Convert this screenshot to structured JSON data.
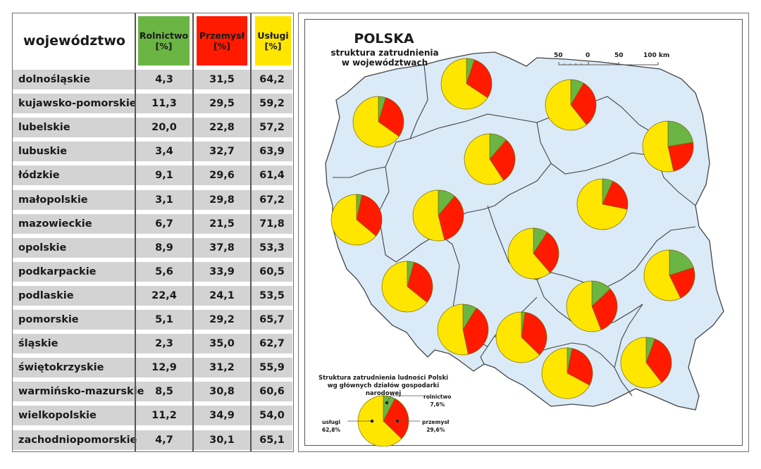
{
  "table": {
    "headers": {
      "region": "województwo",
      "agriculture": [
        "Rolnictwo",
        "[%]"
      ],
      "industry": [
        "Przemysł",
        "[%]"
      ],
      "services": [
        "Usługi",
        "[%]"
      ]
    },
    "header_colors": {
      "agriculture": "#6ab544",
      "industry": "#ff1a00",
      "services": "#ffe600"
    },
    "rows": [
      {
        "name": "dolnośląskie",
        "agri": "4,3",
        "ind": "31,5",
        "serv": "64,2"
      },
      {
        "name": "kujawsko-pomorskie",
        "agri": "11,3",
        "ind": "29,5",
        "serv": "59,2"
      },
      {
        "name": "lubelskie",
        "agri": "20,0",
        "ind": "22,8",
        "serv": "57,2"
      },
      {
        "name": "lubuskie",
        "agri": "3,4",
        "ind": "32,7",
        "serv": "63,9"
      },
      {
        "name": "łódzkie",
        "agri": "9,1",
        "ind": "29,6",
        "serv": "61,4"
      },
      {
        "name": "małopolskie",
        "agri": "3,1",
        "ind": "29,8",
        "serv": "67,2"
      },
      {
        "name": "mazowieckie",
        "agri": "6,7",
        "ind": "21,5",
        "serv": "71,8"
      },
      {
        "name": "opolskie",
        "agri": "8,9",
        "ind": "37,8",
        "serv": "53,3"
      },
      {
        "name": "podkarpackie",
        "agri": "5,6",
        "ind": "33,9",
        "serv": "60,5"
      },
      {
        "name": "podlaskie",
        "agri": "22,4",
        "ind": "24,1",
        "serv": "53,5"
      },
      {
        "name": "pomorskie",
        "agri": "5,1",
        "ind": "29,2",
        "serv": "65,7"
      },
      {
        "name": "śląskie",
        "agri": "2,3",
        "ind": "35,0",
        "serv": "62,7"
      },
      {
        "name": "świętokrzyskie",
        "agri": "12,9",
        "ind": "31,2",
        "serv": "55,9"
      },
      {
        "name": "warmińsko-mazurskie",
        "agri": "8,5",
        "ind": "30,8",
        "serv": "60,6"
      },
      {
        "name": "wielkopolskie",
        "agri": "11,2",
        "ind": "34,9",
        "serv": "54,0"
      },
      {
        "name": "zachodniopomorskie",
        "agri": "4,7",
        "ind": "30,1",
        "serv": "65,1"
      }
    ]
  },
  "map": {
    "title": "POLSKA",
    "subtitle": [
      "struktura zatrudnienia",
      "w województwach"
    ],
    "scale": {
      "labels": [
        "50",
        "0",
        "50",
        "100 km"
      ]
    },
    "legend": {
      "title": [
        "Struktura zatrudnienia ludności Polski",
        "wg głównych działów gospodarki narodowej"
      ],
      "agriculture": [
        "rolnictwo",
        "7,6%"
      ],
      "industry": [
        "przemysł",
        "29,6%"
      ],
      "services": [
        "usługi",
        "62,8%"
      ]
    }
  },
  "chart_data": [
    {
      "type": "table",
      "title": "Struktura zatrudnienia w województwach",
      "columns": [
        "województwo",
        "Rolnictwo [%]",
        "Przemysł [%]",
        "Usługi [%]"
      ],
      "categories": [
        "dolnośląskie",
        "kujawsko-pomorskie",
        "lubelskie",
        "lubuskie",
        "łódzkie",
        "małopolskie",
        "mazowieckie",
        "opolskie",
        "podkarpackie",
        "podlaskie",
        "pomorskie",
        "śląskie",
        "świętokrzyskie",
        "warmińsko-mazurskie",
        "wielkopolskie",
        "zachodniopomorskie"
      ],
      "series": [
        {
          "name": "Rolnictwo",
          "color": "#6ab544",
          "values": [
            4.3,
            11.3,
            20.0,
            3.4,
            9.1,
            3.1,
            6.7,
            8.9,
            5.6,
            22.4,
            5.1,
            2.3,
            12.9,
            8.5,
            11.2,
            4.7
          ]
        },
        {
          "name": "Przemysł",
          "color": "#ff1a00",
          "values": [
            31.5,
            29.5,
            22.8,
            32.7,
            29.6,
            29.8,
            21.5,
            37.8,
            33.9,
            24.1,
            29.2,
            35.0,
            31.2,
            30.8,
            34.9,
            30.1
          ]
        },
        {
          "name": "Usługi",
          "color": "#ffe600",
          "values": [
            64.2,
            59.2,
            57.2,
            63.9,
            61.4,
            67.2,
            71.8,
            53.3,
            60.5,
            53.5,
            65.7,
            62.7,
            55.9,
            60.6,
            54.0,
            65.1
          ]
        }
      ]
    },
    {
      "type": "pie",
      "title": "POLSKA – struktura zatrudnienia w województwach (map of pie charts)",
      "note": "one pie per voivodeship, same values as table",
      "legend_position": "none"
    },
    {
      "type": "pie",
      "title": "Struktura zatrudnienia ludności Polski wg głównych działów gospodarki narodowej",
      "categories": [
        "rolnictwo",
        "przemysł",
        "usługi"
      ],
      "values": [
        7.6,
        29.6,
        62.8
      ],
      "colors": [
        "#6ab544",
        "#ff1a00",
        "#ffe600"
      ]
    }
  ]
}
